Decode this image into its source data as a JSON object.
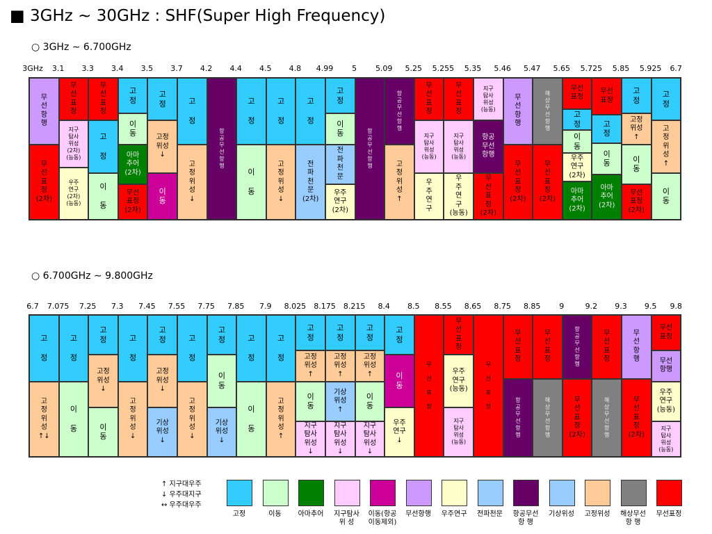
{
  "title": "■ 3GHz ∼ 30GHz : SHF(Super High Frequency)",
  "colors": {
    "fixed": "#33ccff",
    "mobile": "#ccffcc",
    "amateur": "#008000",
    "eess": "#ffccff",
    "mob_exaero": "#cc0099",
    "radionav": "#cc99ff",
    "space_research": "#ffffcc",
    "radio_astro": "#99ccff",
    "aero_radionav": "#660066",
    "met_sat": "#99ccff",
    "fixed_sat": "#ffcc99",
    "maritime_radionav": "#808080",
    "radioloc": "#ff0000"
  },
  "chart_data": [
    {
      "type": "table",
      "subtitle": "○ 3GHz ∼ 6.700GHz",
      "ticks": [
        "3GHz",
        "3.1",
        "3.3",
        "3.4",
        "3.5",
        "3.7",
        "4.2",
        "4.4",
        "4.5",
        "4.8",
        "4.99",
        "5",
        "5.09",
        "5.25",
        "5.255",
        "5.35",
        "5.46",
        "5.47",
        "5.65",
        "5.725",
        "5.85",
        "5.925",
        "6.7"
      ],
      "columns": [
        [
          [
            "무\n선\n항\n행",
            "radionav",
            0.47
          ],
          [
            "무\n선\n표\n정\n(2차)",
            "radioloc",
            0.53
          ]
        ],
        [
          [
            "무\n선\n표\n정",
            "radioloc",
            0.3
          ],
          [
            "지구\n탐사\n위성\n(2차)\n(능동)",
            "eess",
            0.33
          ],
          [
            "우주\n연구\n(2차)\n(능동)",
            "space_research",
            0.37
          ]
        ],
        [
          [
            "무\n선\n표\n정",
            "radioloc",
            0.3
          ],
          [
            "고\n\n정",
            "fixed",
            0.37
          ],
          [
            "이\n\n동",
            "mobile",
            0.33
          ]
        ],
        [
          [
            "고\n정",
            "fixed",
            0.25
          ],
          [
            "이\n동",
            "mobile",
            0.22
          ],
          [
            "아마\n추어\n(2차)",
            "amateur",
            0.28
          ],
          [
            "무선\n표정\n(2차)",
            "radioloc",
            0.25
          ]
        ],
        [
          [
            "고\n정",
            "fixed",
            0.3
          ],
          [
            "고정\n위성\n↓",
            "fixed_sat",
            0.37
          ],
          [
            "이\n동",
            "mob_exaero",
            0.33
          ]
        ],
        [
          [
            "고\n\n정",
            "fixed",
            0.47
          ],
          [
            "고\n정\n위\n성\n↓",
            "fixed_sat",
            0.53
          ]
        ],
        [
          [
            "항\n공\n무\n선\n항\n행",
            "aero_radionav",
            1
          ]
        ],
        [
          [
            "고\n\n정",
            "fixed",
            0.47
          ],
          [
            "이\n\n동",
            "mobile",
            0.53
          ]
        ],
        [
          [
            "고\n\n정",
            "fixed",
            0.47
          ],
          [
            "고\n정\n위\n성\n↓",
            "fixed_sat",
            0.53
          ]
        ],
        [
          [
            "고\n\n정",
            "fixed",
            0.47
          ],
          [
            "전\n파\n천\n문\n(2차)",
            "radio_astro",
            0.53
          ]
        ],
        [
          [
            "고\n정",
            "fixed",
            0.25
          ],
          [
            "이\n동",
            "mobile",
            0.22
          ],
          [
            "전\n파\n천\n문",
            "radio_astro",
            0.28
          ],
          [
            "우주\n연구\n(2차)",
            "space_research",
            0.25
          ]
        ],
        [
          [
            "항\n공\n무\n선\n항\n행",
            "aero_radionav",
            1
          ]
        ],
        [
          [
            "항\n공\n무\n선\n항\n행",
            "aero_radionav",
            0.47
          ],
          [
            "고\n정\n위\n성\n↑",
            "fixed_sat",
            0.53
          ]
        ],
        [
          [
            "무\n선\n표\n정",
            "radioloc",
            0.3
          ],
          [
            "지구\n탐사\n위성\n(능동)",
            "eess",
            0.37
          ],
          [
            "우\n주\n연\n구",
            "space_research",
            0.33
          ]
        ],
        [
          [
            "무\n선\n표\n정",
            "radioloc",
            0.3
          ],
          [
            "지구\n탐사\n위성\n(능동)",
            "eess",
            0.37
          ],
          [
            "우\n주\n연\n구\n(능동)",
            "space_research",
            0.33
          ]
        ],
        [
          [
            "지구\n탐사\n위성\n(능동)",
            "eess",
            0.3
          ],
          [
            "항공\n무선\n항행",
            "aero_radionav",
            0.37
          ],
          [
            "무\n선\n표\n정\n(2차)",
            "radioloc",
            0.33
          ]
        ],
        [
          [
            "무\n선\n항\n행",
            "radionav",
            0.47
          ],
          [
            "무\n선\n표\n정\n(2차)",
            "radioloc",
            0.53
          ]
        ],
        [
          [
            "해\n상\n무\n선\n항\n행",
            "maritime_radionav",
            0.47
          ],
          [
            "무\n선\n표\n정\n(2차)",
            "radioloc",
            0.53
          ]
        ],
        [
          [
            "무선\n표정",
            "radioloc",
            0.22
          ],
          [
            "고\n정",
            "fixed",
            0.15
          ],
          [
            "이\n동",
            "mobile",
            0.16
          ],
          [
            "우주\n연구\n(2차)",
            "space_research",
            0.2
          ],
          [
            "아마\n추어\n(2차)",
            "amateur",
            0.27
          ]
        ],
        [
          [
            "무선\n표정",
            "radioloc",
            0.26
          ],
          [
            "고\n정",
            "fixed",
            0.2
          ],
          [
            "이\n동",
            "mobile",
            0.22
          ],
          [
            "아마\n추어\n(2차)",
            "amateur",
            0.32
          ]
        ],
        [
          [
            "고\n정",
            "fixed",
            0.25
          ],
          [
            "고정\n위성\n↑",
            "fixed_sat",
            0.22
          ],
          [
            "이\n동",
            "mobile",
            0.28
          ],
          [
            "무선\n표정\n(2차)",
            "radioloc",
            0.25
          ]
        ],
        [
          [
            "고\n정",
            "fixed",
            0.3
          ],
          [
            "고\n정\n위\n성\n↑",
            "fixed_sat",
            0.37
          ],
          [
            "이\n동",
            "mobile",
            0.33
          ]
        ]
      ]
    },
    {
      "type": "table",
      "subtitle": "○ 6.700GHz ∼ 9.800GHz",
      "ticks": [
        "6.7",
        "7.075",
        "7.25",
        "7.3",
        "7.45",
        "7.55",
        "7.75",
        "7.85",
        "7.9",
        "8.025",
        "8.175",
        "8.215",
        "8.4",
        "8.5",
        "8.55",
        "8.65",
        "8.75",
        "8.85",
        "9",
        "9.2",
        "9.3",
        "9.5",
        "9.8"
      ],
      "columns": [
        [
          [
            "고\n\n정",
            "fixed",
            0.47
          ],
          [
            "고\n정\n위\n성\n↑↓",
            "fixed_sat",
            0.53
          ]
        ],
        [
          [
            "고\n\n정",
            "fixed",
            0.47
          ],
          [
            "이\n\n동",
            "mobile",
            0.53
          ]
        ],
        [
          [
            "고\n정",
            "fixed",
            0.28
          ],
          [
            "고정\n위성\n↓",
            "fixed_sat",
            0.37
          ],
          [
            "이\n동",
            "mobile",
            0.35
          ]
        ],
        [
          [
            "고\n\n정",
            "fixed",
            0.47
          ],
          [
            "고\n정\n위\n성\n↓",
            "fixed_sat",
            0.53
          ]
        ],
        [
          [
            "고\n정",
            "fixed",
            0.28
          ],
          [
            "고정\n위성\n↓",
            "fixed_sat",
            0.37
          ],
          [
            "기상\n위성\n↓",
            "met_sat",
            0.35
          ]
        ],
        [
          [
            "고\n\n정",
            "fixed",
            0.47
          ],
          [
            "고\n정\n위\n성\n↓",
            "fixed_sat",
            0.53
          ]
        ],
        [
          [
            "고\n정",
            "fixed",
            0.28
          ],
          [
            "이\n동",
            "mobile",
            0.37
          ],
          [
            "기상\n위성\n↓",
            "met_sat",
            0.35
          ]
        ],
        [
          [
            "고\n\n정",
            "fixed",
            0.47
          ],
          [
            "이\n\n동",
            "mobile",
            0.53
          ]
        ],
        [
          [
            "고\n\n정",
            "fixed",
            0.47
          ],
          [
            "고\n정\n위\n성\n↑",
            "fixed_sat",
            0.53
          ]
        ],
        [
          [
            "고\n정",
            "fixed",
            0.25
          ],
          [
            "고정\n위성\n↑",
            "fixed_sat",
            0.22
          ],
          [
            "이\n동",
            "mobile",
            0.28
          ],
          [
            "지구\n탐사\n위성\n↓",
            "eess",
            0.25
          ]
        ],
        [
          [
            "고\n정",
            "fixed",
            0.25
          ],
          [
            "고정\n위성\n↑",
            "fixed_sat",
            0.22
          ],
          [
            "기상\n위성\n↑",
            "met_sat",
            0.28
          ],
          [
            "지구\n탐사\n위성\n↓",
            "eess",
            0.25
          ]
        ],
        [
          [
            "고\n정",
            "fixed",
            0.25
          ],
          [
            "고정\n위성\n↑",
            "fixed_sat",
            0.22
          ],
          [
            "이\n동",
            "mobile",
            0.28
          ],
          [
            "지구\n탐사\n위성\n↓",
            "eess",
            0.25
          ]
        ],
        [
          [
            "고\n정",
            "fixed",
            0.28
          ],
          [
            "이\n동",
            "mob_exaero",
            0.37
          ],
          [
            "우주\n연구\n↓",
            "space_research",
            0.35
          ]
        ],
        [
          [
            "무\n\n선\n\n표\n\n정",
            "radioloc",
            1
          ]
        ],
        [
          [
            "무\n선\n표\n정",
            "radioloc",
            0.28
          ],
          [
            "우주\n연구\n(능동)",
            "space_research",
            0.37
          ],
          [
            "지구\n탐사\n위성\n(능동)",
            "eess",
            0.35
          ]
        ],
        [
          [
            "무\n\n선\n\n표\n\n정",
            "radioloc",
            1
          ]
        ],
        [
          [
            "무\n선\n표\n정",
            "radioloc",
            0.45
          ],
          [
            "항\n공\n무\n선\n항\n행",
            "aero_radionav",
            0.55
          ]
        ],
        [
          [
            "무\n선\n표\n정",
            "radioloc",
            0.45
          ],
          [
            "해\n상\n무\n선\n항\n행",
            "maritime_radionav",
            0.55
          ]
        ],
        [
          [
            "항\n공\n무\n선\n항\n행",
            "aero_radionav",
            0.45
          ],
          [
            "무\n선\n표\n정\n(2차)",
            "radioloc",
            0.55
          ]
        ],
        [
          [
            "무\n선\n표\n정",
            "radioloc",
            0.45
          ],
          [
            "해\n상\n무\n선\n항\n행",
            "maritime_radionav",
            0.55
          ]
        ],
        [
          [
            "무\n선\n항\n행",
            "radionav",
            0.45
          ],
          [
            "무\n선\n표\n정\n(2차)",
            "radioloc",
            0.55
          ]
        ],
        [
          [
            "무선\n표정",
            "radioloc",
            0.25
          ],
          [
            "무선\n항행",
            "radionav",
            0.22
          ],
          [
            "우주\n연구\n(능동)",
            "space_research",
            0.28
          ],
          [
            "지구\n탐사\n위성\n(능동)",
            "eess",
            0.25
          ]
        ]
      ]
    }
  ],
  "legend_notes": [
    "↑  지구대우주",
    "↓  우주대지구",
    "↔  우주대우주"
  ],
  "legend": [
    {
      "label": "고정",
      "color": "fixed"
    },
    {
      "label": "이동",
      "color": "mobile"
    },
    {
      "label": "아마추어",
      "color": "amateur"
    },
    {
      "label": "지구탐사\n위    성",
      "color": "eess"
    },
    {
      "label": "이동(항공\n이동제외)",
      "color": "mob_exaero"
    },
    {
      "label": "무선항행",
      "color": "radionav"
    },
    {
      "label": "우주연구",
      "color": "space_research"
    },
    {
      "label": "전파천문",
      "color": "radio_astro"
    },
    {
      "label": "항공무선\n항    행",
      "color": "aero_radionav"
    },
    {
      "label": "기상위성",
      "color": "met_sat"
    },
    {
      "label": "고정위성",
      "color": "fixed_sat"
    },
    {
      "label": "해상무선\n항    행",
      "color": "maritime_radionav"
    },
    {
      "label": "무선표정",
      "color": "radioloc"
    }
  ]
}
